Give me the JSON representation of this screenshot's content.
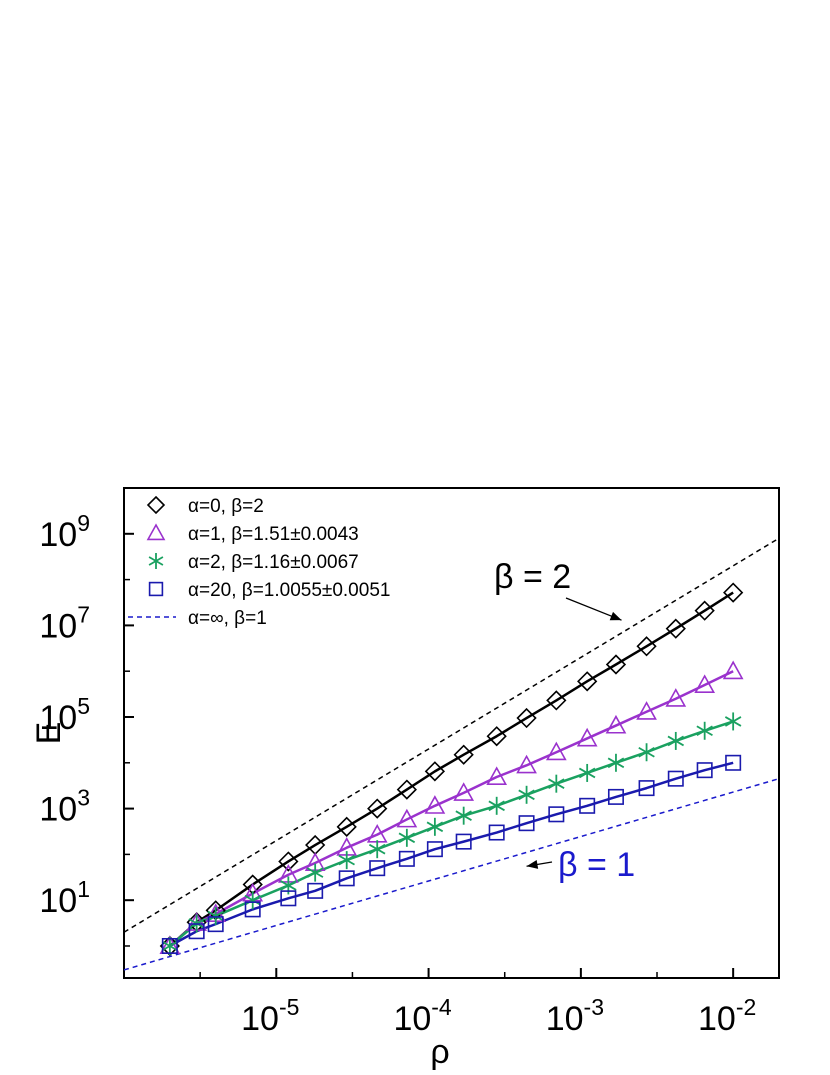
{
  "chart_data": {
    "type": "scatter",
    "xscale": "log",
    "yscale": "log",
    "xlim": [
      1e-06,
      0.02
    ],
    "ylim": [
      0.2,
      10000000000.0
    ],
    "xlabel": "ρ",
    "ylabel": "E",
    "grid": false,
    "legend_position": "top-left",
    "x_ticks": [
      {
        "value": 1e-05,
        "base": "10",
        "exp": "-5"
      },
      {
        "value": 0.0001,
        "base": "10",
        "exp": "-4"
      },
      {
        "value": 0.001,
        "base": "10",
        "exp": "-3"
      },
      {
        "value": 0.01,
        "base": "10",
        "exp": "-2"
      }
    ],
    "y_ticks": [
      {
        "value": 10,
        "base": "10",
        "exp": "1"
      },
      {
        "value": 1000,
        "base": "10",
        "exp": "3"
      },
      {
        "value": 100000,
        "base": "10",
        "exp": "5"
      },
      {
        "value": 10000000,
        "base": "10",
        "exp": "7"
      },
      {
        "value": 1000000000,
        "base": "10",
        "exp": "9"
      }
    ],
    "series": [
      {
        "name": "α=0, β=2",
        "marker": "diamond",
        "color": "#000000",
        "x": [
          2e-06,
          3e-06,
          4e-06,
          7e-06,
          1.2e-05,
          1.8e-05,
          2.9e-05,
          4.6e-05,
          7.2e-05,
          0.00011,
          0.00017,
          0.00028,
          0.00044,
          0.00069,
          0.0011,
          0.0017,
          0.0027,
          0.0042,
          0.0065,
          0.01
        ],
        "y": [
          1,
          3.3,
          6,
          22,
          70,
          160,
          400,
          1000,
          2600,
          6500,
          15000,
          38000,
          95000,
          230000,
          600000,
          1400000,
          3500000,
          8500000,
          21000000,
          52000000
        ]
      },
      {
        "name": "α=1, β=1.51±0.0043",
        "marker": "triangle",
        "color": "#9a32cd",
        "x": [
          2e-06,
          3e-06,
          4e-06,
          7e-06,
          1.2e-05,
          1.8e-05,
          2.9e-05,
          4.6e-05,
          7.2e-05,
          0.00011,
          0.00017,
          0.00028,
          0.00044,
          0.00069,
          0.0011,
          0.0017,
          0.0027,
          0.0042,
          0.0065,
          0.01
        ],
        "y": [
          1,
          3.2,
          5,
          14,
          36,
          65,
          140,
          270,
          580,
          1150,
          2200,
          4900,
          8800,
          17000,
          34000,
          65000,
          130000,
          250000,
          500000,
          1000000
        ]
      },
      {
        "name": "α=2, β=1.16±0.0067",
        "marker": "asterisk",
        "color": "#1aa160",
        "x": [
          2e-06,
          3e-06,
          4e-06,
          7e-06,
          1.2e-05,
          1.8e-05,
          2.9e-05,
          4.6e-05,
          7.2e-05,
          0.00011,
          0.00017,
          0.00028,
          0.00044,
          0.00069,
          0.0011,
          0.0017,
          0.0027,
          0.0042,
          0.0065,
          0.01
        ],
        "y": [
          1,
          3.1,
          4.5,
          10,
          21,
          40,
          75,
          130,
          230,
          400,
          700,
          1150,
          2000,
          3500,
          6000,
          10000,
          17000,
          30000,
          50000,
          80000
        ]
      },
      {
        "name": "α=20, β=1.0055±0.0051",
        "marker": "square",
        "color": "#1a1aad",
        "x": [
          2e-06,
          3e-06,
          4e-06,
          7e-06,
          1.2e-05,
          1.8e-05,
          2.9e-05,
          4.6e-05,
          7.2e-05,
          0.00011,
          0.00017,
          0.00028,
          0.00044,
          0.00069,
          0.0011,
          0.0017,
          0.0027,
          0.0042,
          0.0065,
          0.01
        ],
        "y": [
          1,
          2.1,
          3,
          6.3,
          11,
          16,
          30,
          50,
          80,
          130,
          190,
          300,
          480,
          750,
          1150,
          1800,
          2800,
          4500,
          6900,
          10000
        ]
      }
    ],
    "fit_lines": [
      {
        "series": 0,
        "color": "#000000"
      },
      {
        "series": 1,
        "color": "#9a32cd"
      },
      {
        "series": 2,
        "color": "#1aa160"
      },
      {
        "series": 3,
        "color": "#1a1aad"
      }
    ],
    "reference_lines": [
      {
        "name": "β = 2",
        "slope": 2,
        "x0": 1e-06,
        "y0": 2.0,
        "x1": 0.02,
        "y1": 800000000,
        "color": "#000000"
      },
      {
        "name": "α=∞, β=1",
        "slope": 1,
        "x0": 1e-06,
        "y0": 0.3,
        "x1": 0.02,
        "y1": 4500,
        "color": "#1a1acc"
      }
    ],
    "annotations": [
      {
        "text": "β = 2",
        "color": "#000000",
        "arrow_to": [
          0.00185,
          13000000
        ]
      },
      {
        "text": "β = 1",
        "color": "#1a1acc",
        "arrow_to": [
          0.00044,
          55
        ]
      }
    ],
    "legend_extra": {
      "label": "α=∞, β=1",
      "style": "dashed",
      "color": "#1a1acc"
    }
  }
}
